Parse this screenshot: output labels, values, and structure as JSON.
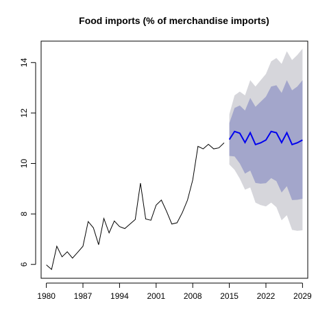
{
  "chart_data": {
    "type": "line",
    "title": "Food imports (% of merchandise imports)",
    "xlabel": "",
    "ylabel": "",
    "xlim": [
      1979,
      2030
    ],
    "ylim": [
      5.45,
      14.85
    ],
    "x_ticks": [
      1980,
      1987,
      1994,
      2001,
      2008,
      2015,
      2022,
      2029
    ],
    "y_ticks": [
      6,
      8,
      10,
      12,
      14
    ],
    "grid": false,
    "colors": {
      "history": "#000000",
      "forecast": "#0000ee",
      "band80": "#a3a6cb",
      "band95": "#d6d6db"
    },
    "history": {
      "x": [
        1980,
        1981,
        1982,
        1983,
        1984,
        1985,
        1986,
        1987,
        1988,
        1989,
        1990,
        1991,
        1992,
        1993,
        1994,
        1995,
        1996,
        1997,
        1998,
        1999,
        2000,
        2001,
        2002,
        2003,
        2004,
        2005,
        2006,
        2007,
        2008,
        2009,
        2010,
        2011,
        2012,
        2013,
        2014
      ],
      "y": [
        5.98,
        5.8,
        6.72,
        6.3,
        6.5,
        6.25,
        6.48,
        6.72,
        7.7,
        7.45,
        6.78,
        7.82,
        7.25,
        7.72,
        7.5,
        7.42,
        7.6,
        7.78,
        9.22,
        7.8,
        7.75,
        8.35,
        8.55,
        8.1,
        7.6,
        7.65,
        8.05,
        8.55,
        9.35,
        10.68,
        10.58,
        10.76,
        10.58,
        10.62,
        10.82
      ]
    },
    "forecast": {
      "x": [
        2015,
        2016,
        2017,
        2018,
        2019,
        2020,
        2021,
        2022,
        2023,
        2024,
        2025,
        2026,
        2027,
        2028,
        2029
      ],
      "mean": [
        10.95,
        11.27,
        11.2,
        10.83,
        11.22,
        10.75,
        10.82,
        10.93,
        11.27,
        11.22,
        10.83,
        11.22,
        10.75,
        10.82,
        10.93
      ],
      "lo80": [
        10.3,
        10.28,
        10.0,
        9.6,
        9.72,
        9.23,
        9.2,
        9.22,
        9.42,
        9.3,
        8.85,
        9.1,
        8.55,
        8.56,
        8.6
      ],
      "hi80": [
        11.6,
        12.2,
        12.3,
        12.1,
        12.6,
        12.25,
        12.45,
        12.65,
        13.05,
        13.1,
        12.8,
        13.3,
        12.9,
        13.05,
        13.3
      ],
      "lo95": [
        9.96,
        9.75,
        9.4,
        8.96,
        9.05,
        8.45,
        8.35,
        8.3,
        8.45,
        8.27,
        7.75,
        7.95,
        7.37,
        7.33,
        7.35
      ],
      "hi95": [
        11.95,
        12.7,
        12.85,
        12.7,
        13.3,
        13.05,
        13.3,
        13.55,
        14.05,
        14.18,
        13.95,
        14.45,
        14.1,
        14.3,
        14.55
      ]
    }
  }
}
